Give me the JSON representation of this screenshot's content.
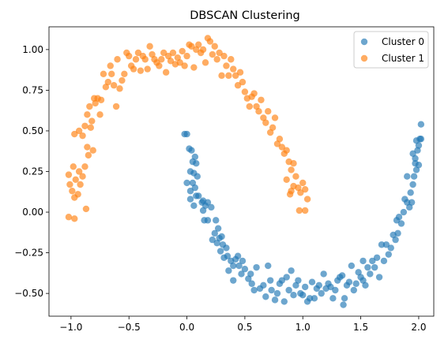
{
  "chart_data": {
    "type": "scatter",
    "title": "DBSCAN Clustering",
    "xlabel": "",
    "ylabel": "",
    "xlim": [
      -1.19,
      2.13
    ],
    "ylim": [
      -0.64,
      1.14
    ],
    "xticks": [
      -1.0,
      -0.5,
      0.0,
      0.5,
      1.0,
      1.5,
      2.0
    ],
    "xtick_labels": [
      "−1.0",
      "−0.5",
      "0.0",
      "0.5",
      "1.0",
      "1.5",
      "2.0"
    ],
    "yticks": [
      -0.5,
      -0.25,
      0.0,
      0.25,
      0.5,
      0.75,
      1.0
    ],
    "ytick_labels": [
      "−0.50",
      "−0.25",
      "0.00",
      "0.25",
      "0.50",
      "0.75",
      "1.00"
    ],
    "grid": false,
    "legend": "top-right",
    "series": [
      {
        "name": "Cluster 0",
        "color": "#1f77b4",
        "points": [
          [
            -0.02,
            0.48
          ],
          [
            0.0,
            0.48
          ],
          [
            0.02,
            0.39
          ],
          [
            0.04,
            0.38
          ],
          [
            0.05,
            0.31
          ],
          [
            0.07,
            0.34
          ],
          [
            0.08,
            0.3
          ],
          [
            0.03,
            0.25
          ],
          [
            0.06,
            0.24
          ],
          [
            0.09,
            0.22
          ],
          [
            0.0,
            0.18
          ],
          [
            0.05,
            0.18
          ],
          [
            0.07,
            0.15
          ],
          [
            0.03,
            0.13
          ],
          [
            0.08,
            0.1
          ],
          [
            0.1,
            0.1
          ],
          [
            0.03,
            0.08
          ],
          [
            0.13,
            0.06
          ],
          [
            0.06,
            0.04
          ],
          [
            0.14,
            0.07
          ],
          [
            0.16,
            0.04
          ],
          [
            0.18,
            0.06
          ],
          [
            0.14,
            0.01
          ],
          [
            0.21,
            0.03
          ],
          [
            0.18,
            -0.05
          ],
          [
            0.15,
            -0.05
          ],
          [
            0.25,
            -0.05
          ],
          [
            0.27,
            -0.1
          ],
          [
            0.24,
            -0.13
          ],
          [
            0.22,
            -0.17
          ],
          [
            0.28,
            -0.16
          ],
          [
            0.3,
            -0.15
          ],
          [
            0.26,
            -0.19
          ],
          [
            0.31,
            -0.2
          ],
          [
            0.34,
            -0.22
          ],
          [
            0.29,
            -0.24
          ],
          [
            0.32,
            -0.28
          ],
          [
            0.35,
            -0.27
          ],
          [
            0.38,
            -0.3
          ],
          [
            0.4,
            -0.33
          ],
          [
            0.42,
            -0.29
          ],
          [
            0.44,
            -0.27
          ],
          [
            0.36,
            -0.36
          ],
          [
            0.4,
            -0.42
          ],
          [
            0.45,
            -0.33
          ],
          [
            0.48,
            -0.3
          ],
          [
            0.5,
            -0.35
          ],
          [
            0.47,
            -0.38
          ],
          [
            0.55,
            -0.38
          ],
          [
            0.53,
            -0.41
          ],
          [
            0.56,
            -0.44
          ],
          [
            0.58,
            -0.48
          ],
          [
            0.6,
            -0.34
          ],
          [
            0.63,
            -0.47
          ],
          [
            0.66,
            -0.45
          ],
          [
            0.68,
            -0.52
          ],
          [
            0.7,
            -0.33
          ],
          [
            0.72,
            -0.42
          ],
          [
            0.73,
            -0.48
          ],
          [
            0.76,
            -0.54
          ],
          [
            0.78,
            -0.5
          ],
          [
            0.8,
            -0.44
          ],
          [
            0.82,
            -0.42
          ],
          [
            0.84,
            -0.55
          ],
          [
            0.86,
            -0.4
          ],
          [
            0.88,
            -0.48
          ],
          [
            0.9,
            -0.36
          ],
          [
            0.92,
            -0.51
          ],
          [
            0.94,
            -0.45
          ],
          [
            0.96,
            -0.42
          ],
          [
            0.98,
            -0.5
          ],
          [
            1.0,
            -0.51
          ],
          [
            1.02,
            -0.46
          ],
          [
            1.04,
            -0.55
          ],
          [
            1.06,
            -0.53
          ],
          [
            1.08,
            -0.43
          ],
          [
            1.1,
            -0.53
          ],
          [
            1.12,
            -0.47
          ],
          [
            1.14,
            -0.45
          ],
          [
            1.16,
            -0.5
          ],
          [
            1.18,
            -0.38
          ],
          [
            1.2,
            -0.47
          ],
          [
            1.22,
            -0.44
          ],
          [
            1.24,
            -0.46
          ],
          [
            1.26,
            -0.53
          ],
          [
            1.28,
            -0.48
          ],
          [
            1.3,
            -0.42
          ],
          [
            1.32,
            -0.4
          ],
          [
            1.34,
            -0.39
          ],
          [
            1.35,
            -0.57
          ],
          [
            1.36,
            -0.53
          ],
          [
            1.38,
            -0.45
          ],
          [
            1.4,
            -0.43
          ],
          [
            1.42,
            -0.33
          ],
          [
            1.44,
            -0.48
          ],
          [
            1.46,
            -0.44
          ],
          [
            1.48,
            -0.37
          ],
          [
            1.5,
            -0.4
          ],
          [
            1.52,
            -0.3
          ],
          [
            1.52,
            -0.42
          ],
          [
            1.54,
            -0.45
          ],
          [
            1.56,
            -0.34
          ],
          [
            1.58,
            -0.38
          ],
          [
            1.6,
            -0.3
          ],
          [
            1.62,
            -0.34
          ],
          [
            1.64,
            -0.28
          ],
          [
            1.66,
            -0.4
          ],
          [
            1.68,
            -0.2
          ],
          [
            1.7,
            -0.3
          ],
          [
            1.72,
            -0.2
          ],
          [
            1.74,
            -0.26
          ],
          [
            1.76,
            -0.22
          ],
          [
            1.78,
            -0.14
          ],
          [
            1.8,
            -0.17
          ],
          [
            1.82,
            -0.13
          ],
          [
            1.81,
            -0.05
          ],
          [
            1.83,
            -0.03
          ],
          [
            1.85,
            -0.07
          ],
          [
            1.87,
            0.0
          ],
          [
            1.88,
            0.08
          ],
          [
            1.9,
            0.06
          ],
          [
            1.92,
            0.03
          ],
          [
            1.93,
            0.12
          ],
          [
            1.95,
            0.17
          ],
          [
            1.9,
            0.22
          ],
          [
            1.96,
            0.22
          ],
          [
            1.98,
            0.26
          ],
          [
            1.97,
            0.3
          ],
          [
            1.95,
            0.36
          ],
          [
            1.97,
            0.33
          ],
          [
            1.99,
            0.38
          ],
          [
            2.0,
            0.41
          ],
          [
            1.98,
            0.44
          ],
          [
            2.01,
            0.45
          ],
          [
            2.02,
            0.45
          ],
          [
            2.02,
            0.54
          ],
          [
            2.0,
            0.29
          ],
          [
            1.94,
            0.06
          ]
        ]
      },
      {
        "name": "Cluster 1",
        "color": "#ff7f0e",
        "points": [
          [
            -1.02,
            -0.03
          ],
          [
            -0.97,
            -0.04
          ],
          [
            -1.02,
            0.23
          ],
          [
            -1.01,
            0.17
          ],
          [
            -0.99,
            0.13
          ],
          [
            -0.97,
            0.09
          ],
          [
            -0.98,
            0.28
          ],
          [
            -0.96,
            0.2
          ],
          [
            -0.94,
            0.11
          ],
          [
            -0.93,
            0.25
          ],
          [
            -0.92,
            0.17
          ],
          [
            -0.9,
            0.22
          ],
          [
            -0.87,
            0.02
          ],
          [
            -0.88,
            0.28
          ],
          [
            -0.86,
            0.4
          ],
          [
            -0.85,
            0.35
          ],
          [
            -0.97,
            0.48
          ],
          [
            -0.93,
            0.5
          ],
          [
            -0.9,
            0.47
          ],
          [
            -0.88,
            0.53
          ],
          [
            -0.86,
            0.6
          ],
          [
            -0.84,
            0.65
          ],
          [
            -0.82,
            0.56
          ],
          [
            -0.81,
            0.38
          ],
          [
            -0.83,
            0.52
          ],
          [
            -0.8,
            0.7
          ],
          [
            -0.79,
            0.67
          ],
          [
            -0.77,
            0.7
          ],
          [
            -0.75,
            0.6
          ],
          [
            -0.74,
            0.69
          ],
          [
            -0.72,
            0.85
          ],
          [
            -0.7,
            0.77
          ],
          [
            -0.68,
            0.8
          ],
          [
            -0.66,
            0.9
          ],
          [
            -0.65,
            0.85
          ],
          [
            -0.63,
            0.78
          ],
          [
            -0.61,
            0.65
          ],
          [
            -0.6,
            0.94
          ],
          [
            -0.58,
            0.76
          ],
          [
            -0.56,
            0.81
          ],
          [
            -0.54,
            0.85
          ],
          [
            -0.52,
            0.98
          ],
          [
            -0.5,
            0.96
          ],
          [
            -0.48,
            0.9
          ],
          [
            -0.46,
            0.88
          ],
          [
            -0.44,
            0.94
          ],
          [
            -0.42,
            0.98
          ],
          [
            -0.4,
            0.87
          ],
          [
            -0.38,
            0.96
          ],
          [
            -0.36,
            0.94
          ],
          [
            -0.34,
            0.88
          ],
          [
            -0.32,
            1.02
          ],
          [
            -0.3,
            0.97
          ],
          [
            -0.28,
            0.94
          ],
          [
            -0.26,
            0.92
          ],
          [
            -0.24,
            0.9
          ],
          [
            -0.22,
            0.94
          ],
          [
            -0.2,
            0.98
          ],
          [
            -0.18,
            0.86
          ],
          [
            -0.16,
            0.96
          ],
          [
            -0.14,
            0.93
          ],
          [
            -0.12,
            0.98
          ],
          [
            -0.1,
            0.91
          ],
          [
            -0.08,
            0.95
          ],
          [
            -0.06,
            0.92
          ],
          [
            -0.04,
            0.99
          ],
          [
            -0.02,
            0.9
          ],
          [
            0.0,
            0.96
          ],
          [
            0.02,
            1.03
          ],
          [
            0.04,
            1.02
          ],
          [
            0.06,
            0.89
          ],
          [
            0.08,
            1.0
          ],
          [
            0.1,
            1.03
          ],
          [
            0.12,
            0.98
          ],
          [
            0.14,
            1.0
          ],
          [
            0.16,
            0.92
          ],
          [
            0.18,
            1.07
          ],
          [
            0.2,
            1.05
          ],
          [
            0.22,
            0.97
          ],
          [
            0.24,
            1.02
          ],
          [
            0.26,
            0.94
          ],
          [
            0.28,
            0.98
          ],
          [
            0.3,
            0.84
          ],
          [
            0.32,
            0.96
          ],
          [
            0.34,
            0.9
          ],
          [
            0.36,
            0.84
          ],
          [
            0.38,
            0.94
          ],
          [
            0.4,
            0.88
          ],
          [
            0.42,
            0.84
          ],
          [
            0.44,
            0.78
          ],
          [
            0.46,
            0.86
          ],
          [
            0.48,
            0.8
          ],
          [
            0.5,
            0.74
          ],
          [
            0.52,
            0.7
          ],
          [
            0.54,
            0.65
          ],
          [
            0.56,
            0.71
          ],
          [
            0.58,
            0.73
          ],
          [
            0.6,
            0.65
          ],
          [
            0.62,
            0.62
          ],
          [
            0.64,
            0.69
          ],
          [
            0.66,
            0.58
          ],
          [
            0.68,
            0.55
          ],
          [
            0.7,
            0.62
          ],
          [
            0.72,
            0.49
          ],
          [
            0.74,
            0.52
          ],
          [
            0.76,
            0.58
          ],
          [
            0.78,
            0.42
          ],
          [
            0.8,
            0.45
          ],
          [
            0.82,
            0.4
          ],
          [
            0.84,
            0.36
          ],
          [
            0.86,
            0.38
          ],
          [
            0.88,
            0.31
          ],
          [
            0.9,
            0.26
          ],
          [
            0.92,
            0.3
          ],
          [
            0.94,
            0.22
          ],
          [
            0.96,
            0.15
          ],
          [
            0.98,
            0.12
          ],
          [
            1.0,
            0.18
          ],
          [
            1.02,
            0.14
          ],
          [
            1.04,
            0.08
          ],
          [
            0.97,
            0.01
          ],
          [
            1.02,
            0.01
          ],
          [
            0.92,
            0.16
          ],
          [
            0.89,
            0.11
          ],
          [
            0.86,
            0.2
          ],
          [
            0.9,
            0.13
          ]
        ]
      }
    ]
  }
}
